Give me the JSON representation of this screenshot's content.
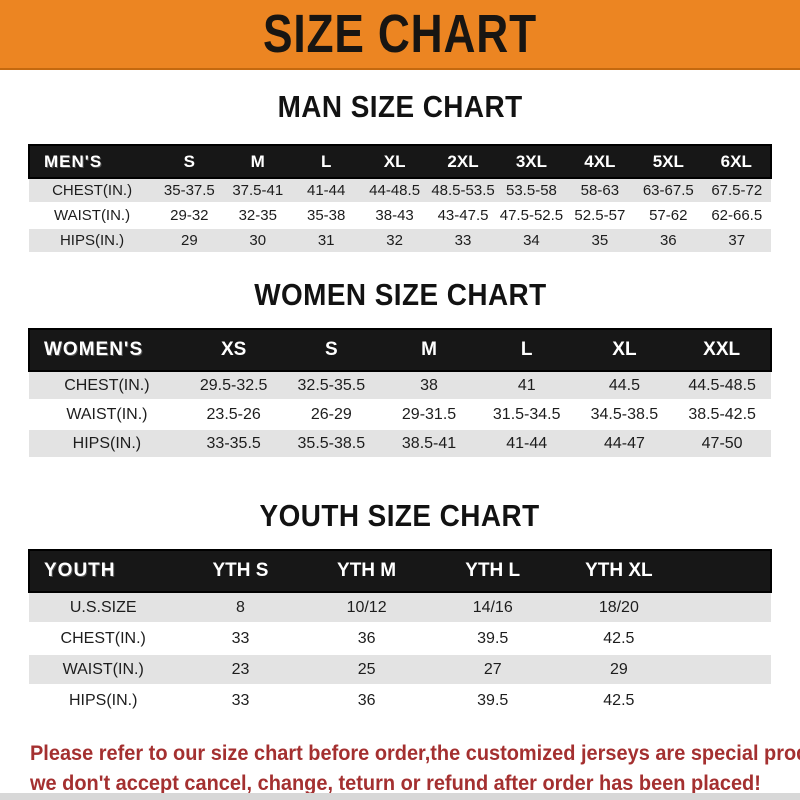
{
  "banner": {
    "title": "SIZE CHART"
  },
  "colors": {
    "banner_bg": "#EC8522",
    "header_bar": "#171717",
    "row_alt": "#E3E3E3",
    "disclaimer": "#A43030"
  },
  "tables": [
    {
      "heading": "MAN SIZE CHART",
      "header_label": "MEN'S",
      "columns": [
        "S",
        "M",
        "L",
        "XL",
        "2XL",
        "3XL",
        "4XL",
        "5XL",
        "6XL"
      ],
      "rows": [
        {
          "label": "CHEST(IN.)",
          "values": [
            "35-37.5",
            "37.5-41",
            "41-44",
            "44-48.5",
            "48.5-53.5",
            "53.5-58",
            "58-63",
            "63-67.5",
            "67.5-72"
          ]
        },
        {
          "label": "WAIST(IN.)",
          "values": [
            "29-32",
            "32-35",
            "35-38",
            "38-43",
            "43-47.5",
            "47.5-52.5",
            "52.5-57",
            "57-62",
            "62-66.5"
          ]
        },
        {
          "label": "HIPS(IN.)",
          "values": [
            "29",
            "30",
            "31",
            "32",
            "33",
            "34",
            "35",
            "36",
            "37"
          ]
        }
      ]
    },
    {
      "heading": "WOMEN SIZE CHART",
      "header_label": "WOMEN'S",
      "columns": [
        "XS",
        "S",
        "M",
        "L",
        "XL",
        "XXL"
      ],
      "rows": [
        {
          "label": "CHEST(IN.)",
          "values": [
            "29.5-32.5",
            "32.5-35.5",
            "38",
            "41",
            "44.5",
            "44.5-48.5"
          ]
        },
        {
          "label": "WAIST(IN.)",
          "values": [
            "23.5-26",
            "26-29",
            "29-31.5",
            "31.5-34.5",
            "34.5-38.5",
            "38.5-42.5"
          ]
        },
        {
          "label": "HIPS(IN.)",
          "values": [
            "33-35.5",
            "35.5-38.5",
            "38.5-41",
            "41-44",
            "44-47",
            "47-50"
          ]
        }
      ]
    },
    {
      "heading": "YOUTH SIZE CHART",
      "header_label": "YOUTH",
      "columns": [
        "YTH S",
        "YTH M",
        "YTH L",
        "YTH XL"
      ],
      "rows": [
        {
          "label": "U.S.SIZE",
          "values": [
            "8",
            "10/12",
            "14/16",
            "18/20"
          ]
        },
        {
          "label": "CHEST(IN.)",
          "values": [
            "33",
            "36",
            "39.5",
            "42.5"
          ]
        },
        {
          "label": "WAIST(IN.)",
          "values": [
            "23",
            "25",
            "27",
            "29"
          ]
        },
        {
          "label": "HIPS(IN.)",
          "values": [
            "33",
            "36",
            "39.5",
            "42.5"
          ]
        }
      ]
    }
  ],
  "disclaimer": {
    "line1": "Please refer to our size chart before order,the customized jerseys are special products,",
    "line2": "we don't accept cancel, change, teturn or refund after order has been placed!"
  }
}
